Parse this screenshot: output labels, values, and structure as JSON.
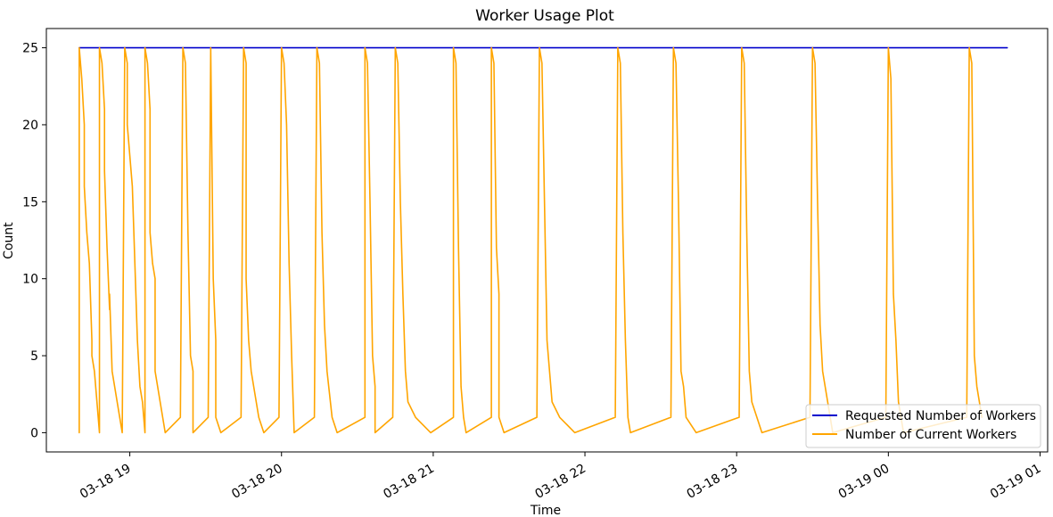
{
  "chart_data": {
    "type": "line",
    "title": "Worker Usage Plot",
    "xlabel": "Time",
    "ylabel": "Count",
    "xlim": [
      "2024-03-18 18:27",
      "2024-03-19 01:03"
    ],
    "ylim": [
      -1.25,
      26.25
    ],
    "x_ticks": [
      "2024-03-18 19:00",
      "2024-03-18 20:00",
      "2024-03-18 21:00",
      "2024-03-18 22:00",
      "2024-03-18 23:00",
      "2024-03-19 00:00",
      "2024-03-19 01:00"
    ],
    "x_tick_labels": [
      "03-18 19",
      "03-18 20",
      "03-18 21",
      "03-18 22",
      "03-18 23",
      "03-19 00",
      "03-19 01"
    ],
    "y_ticks": [
      0,
      5,
      10,
      15,
      20,
      25
    ],
    "y_tick_labels": [
      "0",
      "5",
      "10",
      "15",
      "20",
      "25"
    ],
    "grid": false,
    "legend_position": "bottom-right",
    "series": [
      {
        "name": "Requested Number of Workers",
        "color": "#0000cc",
        "points": [
          [
            "2024-03-18 18:40",
            25
          ],
          [
            "2024-03-19 00:47",
            25
          ]
        ]
      },
      {
        "name": "Number of Current Workers",
        "color": "#ffa500",
        "points": [
          [
            "2024-03-18 18:40",
            0
          ],
          [
            "2024-03-18 18:40",
            25
          ],
          [
            "2024-03-18 18:41",
            23
          ],
          [
            "2024-03-18 18:42",
            20
          ],
          [
            "2024-03-18 18:42",
            16
          ],
          [
            "2024-03-18 18:43",
            13
          ],
          [
            "2024-03-18 18:44",
            11
          ],
          [
            "2024-03-18 18:45",
            6
          ],
          [
            "2024-03-18 18:45",
            5
          ],
          [
            "2024-03-18 18:46",
            4
          ],
          [
            "2024-03-18 18:47",
            2
          ],
          [
            "2024-03-18 18:48",
            0
          ],
          [
            "2024-03-18 18:48",
            25
          ],
          [
            "2024-03-18 18:49",
            24
          ],
          [
            "2024-03-18 18:50",
            21
          ],
          [
            "2024-03-18 18:50",
            17
          ],
          [
            "2024-03-18 18:51",
            12
          ],
          [
            "2024-03-18 18:52",
            8
          ],
          [
            "2024-03-18 18:52",
            9
          ],
          [
            "2024-03-18 18:53",
            4
          ],
          [
            "2024-03-18 18:54",
            3
          ],
          [
            "2024-03-18 18:55",
            2
          ],
          [
            "2024-03-18 18:57",
            0
          ],
          [
            "2024-03-18 18:58",
            25
          ],
          [
            "2024-03-18 18:59",
            24
          ],
          [
            "2024-03-18 18:59",
            20
          ],
          [
            "2024-03-18 19:00",
            18
          ],
          [
            "2024-03-18 19:01",
            16
          ],
          [
            "2024-03-18 19:02",
            11
          ],
          [
            "2024-03-18 19:03",
            6
          ],
          [
            "2024-03-18 19:04",
            3
          ],
          [
            "2024-03-18 19:05",
            2
          ],
          [
            "2024-03-18 19:06",
            0
          ],
          [
            "2024-03-18 19:06",
            25
          ],
          [
            "2024-03-18 19:07",
            24
          ],
          [
            "2024-03-18 19:08",
            21
          ],
          [
            "2024-03-18 19:08",
            13
          ],
          [
            "2024-03-18 19:09",
            11
          ],
          [
            "2024-03-18 19:10",
            10
          ],
          [
            "2024-03-18 19:10",
            4
          ],
          [
            "2024-03-18 19:11",
            3
          ],
          [
            "2024-03-18 19:12",
            2
          ],
          [
            "2024-03-18 19:14",
            0
          ],
          [
            "2024-03-18 19:20",
            1
          ],
          [
            "2024-03-18 19:21",
            25
          ],
          [
            "2024-03-18 19:22",
            24
          ],
          [
            "2024-03-18 19:23",
            13
          ],
          [
            "2024-03-18 19:24",
            5
          ],
          [
            "2024-03-18 19:25",
            4
          ],
          [
            "2024-03-18 19:25",
            0
          ],
          [
            "2024-03-18 19:31",
            1
          ],
          [
            "2024-03-18 19:32",
            25
          ],
          [
            "2024-03-18 19:33",
            10
          ],
          [
            "2024-03-18 19:34",
            6
          ],
          [
            "2024-03-18 19:34",
            1
          ],
          [
            "2024-03-18 19:36",
            0
          ],
          [
            "2024-03-18 19:44",
            1
          ],
          [
            "2024-03-18 19:45",
            25
          ],
          [
            "2024-03-18 19:46",
            24
          ],
          [
            "2024-03-18 19:46",
            10
          ],
          [
            "2024-03-18 19:47",
            6
          ],
          [
            "2024-03-18 19:48",
            4
          ],
          [
            "2024-03-18 19:49",
            3
          ],
          [
            "2024-03-18 19:50",
            2
          ],
          [
            "2024-03-18 19:51",
            1
          ],
          [
            "2024-03-18 19:53",
            0
          ],
          [
            "2024-03-18 19:59",
            1
          ],
          [
            "2024-03-18 20:00",
            25
          ],
          [
            "2024-03-18 20:01",
            24
          ],
          [
            "2024-03-18 20:02",
            20
          ],
          [
            "2024-03-18 20:03",
            11
          ],
          [
            "2024-03-18 20:04",
            5
          ],
          [
            "2024-03-18 20:05",
            0
          ],
          [
            "2024-03-18 20:13",
            1
          ],
          [
            "2024-03-18 20:14",
            25
          ],
          [
            "2024-03-18 20:15",
            24
          ],
          [
            "2024-03-18 20:16",
            13
          ],
          [
            "2024-03-18 20:17",
            7
          ],
          [
            "2024-03-18 20:18",
            4
          ],
          [
            "2024-03-18 20:20",
            1
          ],
          [
            "2024-03-18 20:22",
            0
          ],
          [
            "2024-03-18 20:33",
            1
          ],
          [
            "2024-03-18 20:33",
            25
          ],
          [
            "2024-03-18 20:34",
            24
          ],
          [
            "2024-03-18 20:35",
            15
          ],
          [
            "2024-03-18 20:36",
            5
          ],
          [
            "2024-03-18 20:37",
            3
          ],
          [
            "2024-03-18 20:37",
            0
          ],
          [
            "2024-03-18 20:44",
            1
          ],
          [
            "2024-03-18 20:45",
            25
          ],
          [
            "2024-03-18 20:46",
            24
          ],
          [
            "2024-03-18 20:47",
            15
          ],
          [
            "2024-03-18 20:48",
            9
          ],
          [
            "2024-03-18 20:49",
            4
          ],
          [
            "2024-03-18 20:50",
            2
          ],
          [
            "2024-03-18 20:53",
            1
          ],
          [
            "2024-03-18 20:59",
            0
          ],
          [
            "2024-03-18 21:08",
            1
          ],
          [
            "2024-03-18 21:08",
            25
          ],
          [
            "2024-03-18 21:09",
            24
          ],
          [
            "2024-03-18 21:10",
            12
          ],
          [
            "2024-03-18 21:11",
            3
          ],
          [
            "2024-03-18 21:12",
            1
          ],
          [
            "2024-03-18 21:13",
            0
          ],
          [
            "2024-03-18 21:23",
            1
          ],
          [
            "2024-03-18 21:23",
            25
          ],
          [
            "2024-03-18 21:24",
            24
          ],
          [
            "2024-03-18 21:25",
            12
          ],
          [
            "2024-03-18 21:26",
            9
          ],
          [
            "2024-03-18 21:26",
            1
          ],
          [
            "2024-03-18 21:28",
            0
          ],
          [
            "2024-03-18 21:41",
            1
          ],
          [
            "2024-03-18 21:42",
            25
          ],
          [
            "2024-03-18 21:43",
            24
          ],
          [
            "2024-03-18 21:44",
            15
          ],
          [
            "2024-03-18 21:45",
            6
          ],
          [
            "2024-03-18 21:46",
            4
          ],
          [
            "2024-03-18 21:47",
            2
          ],
          [
            "2024-03-18 21:50",
            1
          ],
          [
            "2024-03-18 21:56",
            0
          ],
          [
            "2024-03-18 22:12",
            1
          ],
          [
            "2024-03-18 22:13",
            25
          ],
          [
            "2024-03-18 22:14",
            24
          ],
          [
            "2024-03-18 22:15",
            13
          ],
          [
            "2024-03-18 22:16",
            6
          ],
          [
            "2024-03-18 22:17",
            1
          ],
          [
            "2024-03-18 22:18",
            0
          ],
          [
            "2024-03-18 22:34",
            1
          ],
          [
            "2024-03-18 22:35",
            25
          ],
          [
            "2024-03-18 22:36",
            24
          ],
          [
            "2024-03-18 22:37",
            15
          ],
          [
            "2024-03-18 22:38",
            4
          ],
          [
            "2024-03-18 22:39",
            3
          ],
          [
            "2024-03-18 22:40",
            1
          ],
          [
            "2024-03-18 22:44",
            0
          ],
          [
            "2024-03-18 23:01",
            1
          ],
          [
            "2024-03-18 23:02",
            25
          ],
          [
            "2024-03-18 23:03",
            24
          ],
          [
            "2024-03-18 23:04",
            13
          ],
          [
            "2024-03-18 23:05",
            4
          ],
          [
            "2024-03-18 23:06",
            2
          ],
          [
            "2024-03-18 23:08",
            1
          ],
          [
            "2024-03-18 23:10",
            0
          ],
          [
            "2024-03-18 23:29",
            1
          ],
          [
            "2024-03-18 23:30",
            25
          ],
          [
            "2024-03-18 23:31",
            24
          ],
          [
            "2024-03-18 23:32",
            15
          ],
          [
            "2024-03-18 23:33",
            7
          ],
          [
            "2024-03-18 23:34",
            4
          ],
          [
            "2024-03-18 23:35",
            3
          ],
          [
            "2024-03-18 23:37",
            1
          ],
          [
            "2024-03-18 23:38",
            0
          ],
          [
            "2024-03-18 23:59",
            1
          ],
          [
            "2024-03-19 00:00",
            25
          ],
          [
            "2024-03-19 00:01",
            23
          ],
          [
            "2024-03-19 00:02",
            9
          ],
          [
            "2024-03-19 00:03",
            6
          ],
          [
            "2024-03-19 00:04",
            2
          ],
          [
            "2024-03-19 00:05",
            1
          ],
          [
            "2024-03-19 00:06",
            0
          ],
          [
            "2024-03-19 00:31",
            1
          ],
          [
            "2024-03-19 00:32",
            25
          ],
          [
            "2024-03-19 00:33",
            24
          ],
          [
            "2024-03-19 00:34",
            5
          ],
          [
            "2024-03-19 00:35",
            3
          ],
          [
            "2024-03-19 00:36",
            2
          ],
          [
            "2024-03-19 00:37",
            1
          ]
        ]
      }
    ]
  }
}
